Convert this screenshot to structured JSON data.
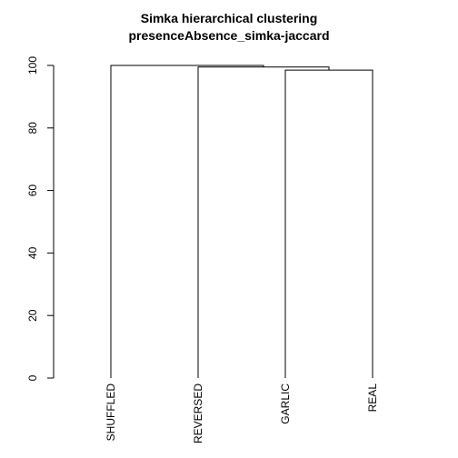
{
  "chart_data": {
    "type": "dendrogram",
    "title": "Simka hierarchical clustering",
    "subtitle": "presenceAbsence_simka-jaccard",
    "xlabel": "",
    "ylabel": "",
    "ylim": [
      0,
      100
    ],
    "yticks": [
      0,
      20,
      40,
      60,
      80,
      100
    ],
    "leaves": [
      "SHUFFLED",
      "REVERSED",
      "GARLIC",
      "REAL"
    ],
    "merges": [
      {
        "left": "GARLIC",
        "right": "REAL",
        "height": 98.5
      },
      {
        "left": "REVERSED",
        "right": "GARLIC+REAL",
        "height": 99.5
      },
      {
        "left": "SHUFFLED",
        "right": "REVERSED+GARLIC+REAL",
        "height": 100
      }
    ],
    "grid": false,
    "legend": "none"
  }
}
